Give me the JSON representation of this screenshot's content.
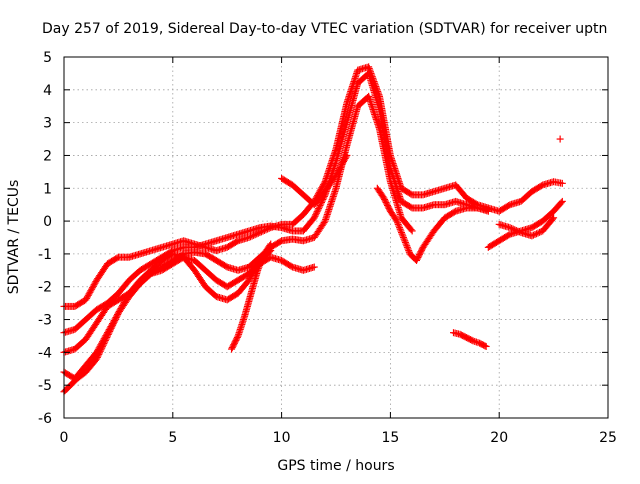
{
  "chart_data": {
    "type": "scatter",
    "title": "Day 257 of 2019, Sidereal Day-to-day VTEC variation (SDTVAR) for receiver uptn",
    "xlabel": "GPS time / hours",
    "ylabel": "SDTVAR / TECUs",
    "xlim": [
      0,
      25
    ],
    "ylim": [
      -6,
      5
    ],
    "xticks": [
      0,
      5,
      10,
      15,
      20,
      25
    ],
    "yticks": [
      -6,
      -5,
      -4,
      -3,
      -2,
      -1,
      0,
      1,
      2,
      3,
      4,
      5
    ],
    "grid": true,
    "marker": "+",
    "color": "#ff0000",
    "series": [
      {
        "name": "track-1",
        "x": [
          0.0,
          0.5,
          1.0,
          1.5,
          2.0,
          2.5,
          3.0,
          3.5,
          4.0,
          4.5,
          5.0,
          5.5,
          6.0,
          6.5,
          7.0,
          7.5,
          8.0,
          8.5,
          9.0,
          9.5,
          10.0,
          10.5,
          11.0,
          11.5,
          12.0,
          12.5,
          13.0,
          13.5,
          14.0,
          14.5,
          15.0,
          15.5,
          16.0,
          16.5,
          17.0,
          17.5,
          18.0,
          18.5,
          19.0,
          19.5,
          20.0,
          20.5,
          21.0,
          21.5,
          22.0,
          22.5,
          22.9
        ],
        "y": [
          -2.6,
          -2.6,
          -2.4,
          -1.8,
          -1.3,
          -1.1,
          -1.1,
          -1.0,
          -0.9,
          -0.8,
          -0.7,
          -0.6,
          -0.7,
          -0.8,
          -0.9,
          -0.8,
          -0.6,
          -0.5,
          -0.35,
          -0.2,
          -0.1,
          -0.1,
          0.2,
          0.6,
          1.2,
          2.2,
          3.6,
          4.6,
          4.7,
          3.8,
          2.0,
          1.0,
          0.8,
          0.8,
          0.9,
          1.0,
          1.1,
          0.7,
          0.5,
          0.4,
          0.3,
          0.5,
          0.6,
          0.9,
          1.1,
          1.2,
          1.15
        ]
      },
      {
        "name": "track-2",
        "x": [
          0.0,
          0.5,
          1.0,
          1.5,
          2.0,
          2.5,
          3.0,
          3.5,
          4.0,
          4.5,
          5.0,
          5.5,
          6.0,
          6.5,
          7.0,
          7.5,
          8.0,
          8.5,
          9.0,
          9.5,
          10.0,
          10.5,
          11.0,
          11.5,
          12.0,
          12.5,
          13.0,
          13.5,
          14.0,
          14.5,
          15.0,
          15.5,
          16.0,
          16.5,
          17.0,
          17.5,
          18.0,
          18.5,
          19.0,
          19.5
        ],
        "y": [
          -3.4,
          -3.3,
          -3.0,
          -2.7,
          -2.5,
          -2.2,
          -1.8,
          -1.5,
          -1.3,
          -1.1,
          -0.9,
          -0.8,
          -0.8,
          -0.7,
          -0.6,
          -0.5,
          -0.4,
          -0.3,
          -0.2,
          -0.15,
          -0.2,
          -0.3,
          -0.3,
          0.1,
          0.8,
          1.8,
          3.0,
          4.2,
          4.5,
          3.4,
          1.6,
          0.6,
          0.4,
          0.4,
          0.5,
          0.5,
          0.6,
          0.5,
          0.4,
          0.3
        ]
      },
      {
        "name": "track-3",
        "x": [
          0.0,
          0.5,
          1.0,
          1.5,
          2.0,
          2.5,
          3.0,
          3.5,
          4.0,
          4.5,
          5.0,
          5.5,
          6.0,
          6.5,
          7.0,
          7.5,
          8.0,
          8.5,
          9.0,
          9.5,
          10.0,
          10.5,
          11.0,
          11.5,
          12.0,
          12.5,
          13.0,
          13.5,
          14.0,
          14.5,
          15.0,
          15.5,
          16.0
        ],
        "y": [
          -4.0,
          -3.9,
          -3.6,
          -3.1,
          -2.6,
          -2.4,
          -2.2,
          -1.9,
          -1.6,
          -1.4,
          -1.2,
          -1.0,
          -0.95,
          -1.0,
          -1.2,
          -1.4,
          -1.5,
          -1.4,
          -1.1,
          -0.8,
          -0.6,
          -0.55,
          -0.6,
          -0.5,
          0.0,
          1.0,
          2.3,
          3.5,
          3.8,
          2.8,
          1.2,
          0.1,
          -0.3
        ]
      },
      {
        "name": "track-4",
        "x": [
          0.0,
          0.5,
          1.0,
          1.5,
          2.0,
          2.5,
          3.0,
          3.5,
          4.0,
          4.5,
          5.0,
          5.5,
          6.0,
          6.5,
          7.0,
          7.5,
          8.0,
          8.5,
          9.0,
          9.5,
          10.0,
          10.5,
          11.0,
          11.5
        ],
        "y": [
          -4.6,
          -4.8,
          -4.4,
          -4.0,
          -3.4,
          -2.8,
          -2.3,
          -1.9,
          -1.6,
          -1.5,
          -1.3,
          -1.1,
          -1.2,
          -1.5,
          -1.8,
          -2.0,
          -1.8,
          -1.6,
          -1.3,
          -1.1,
          -1.2,
          -1.4,
          -1.5,
          -1.4
        ]
      },
      {
        "name": "track-5",
        "x": [
          0.0,
          0.3,
          0.6,
          1.0,
          1.5,
          2.0,
          2.5,
          3.0,
          3.5,
          4.0,
          4.5,
          5.0,
          5.5,
          6.0,
          6.5,
          7.0,
          7.5,
          8.0,
          8.5,
          9.0,
          9.5
        ],
        "y": [
          -5.2,
          -5.0,
          -4.8,
          -4.6,
          -4.2,
          -3.5,
          -2.8,
          -2.2,
          -1.8,
          -1.5,
          -1.2,
          -1.0,
          -1.1,
          -1.5,
          -2.0,
          -2.3,
          -2.4,
          -2.2,
          -1.8,
          -1.2,
          -0.9
        ]
      },
      {
        "name": "track-6",
        "x": [
          7.7,
          8.0,
          8.3,
          8.6,
          8.9,
          9.2,
          9.5
        ],
        "y": [
          -3.9,
          -3.5,
          -2.9,
          -2.2,
          -1.5,
          -1.0,
          -0.7
        ]
      },
      {
        "name": "track-7",
        "x": [
          10.0,
          10.5,
          11.0,
          11.5,
          12.0,
          12.5,
          13.0
        ],
        "y": [
          1.3,
          1.1,
          0.8,
          0.5,
          0.9,
          1.4,
          2.0
        ]
      },
      {
        "name": "track-8",
        "x": [
          14.4,
          14.7,
          15.0,
          15.3,
          15.6,
          15.9,
          16.2,
          16.5,
          17.0,
          17.5,
          18.0,
          18.5,
          19.0,
          19.5
        ],
        "y": [
          1.0,
          0.7,
          0.3,
          0.0,
          -0.5,
          -1.0,
          -1.2,
          -0.8,
          -0.3,
          0.1,
          0.3,
          0.4,
          0.4,
          0.35
        ]
      },
      {
        "name": "track-9",
        "x": [
          19.5,
          20.0,
          20.5,
          21.0,
          21.5,
          22.0,
          22.5,
          22.9
        ],
        "y": [
          -0.8,
          -0.6,
          -0.4,
          -0.3,
          -0.2,
          0.0,
          0.3,
          0.6
        ]
      },
      {
        "name": "track-10",
        "x": [
          20.0,
          20.5,
          21.0,
          21.5,
          22.0,
          22.5
        ],
        "y": [
          -0.1,
          -0.2,
          -0.35,
          -0.45,
          -0.3,
          0.1
        ]
      },
      {
        "name": "track-11",
        "x": [
          17.9,
          18.2,
          18.5,
          18.8,
          19.1,
          19.4
        ],
        "y": [
          -3.4,
          -3.45,
          -3.55,
          -3.65,
          -3.72,
          -3.82
        ]
      },
      {
        "name": "isolated-point",
        "x": [
          22.8
        ],
        "y": [
          2.5
        ]
      }
    ]
  }
}
